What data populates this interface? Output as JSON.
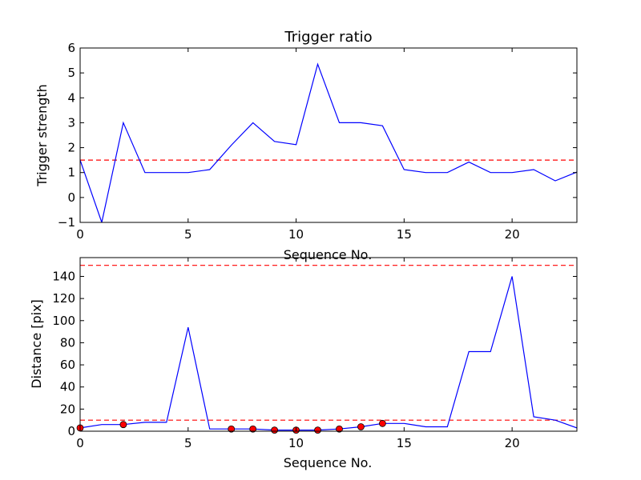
{
  "chart_data": [
    {
      "type": "line",
      "title": "Trigger ratio",
      "xlabel": "Sequence No.",
      "ylabel": "Trigger strength",
      "xlim": [
        0,
        23
      ],
      "ylim": [
        -1,
        6
      ],
      "xticks": [
        "0",
        "5",
        "10",
        "15",
        "20"
      ],
      "yticks": [
        "−1",
        "0",
        "1",
        "2",
        "3",
        "4",
        "5",
        "6"
      ],
      "grid": false,
      "series": [
        {
          "color": "#0000ff",
          "x": [
            0,
            1,
            2,
            3,
            4,
            5,
            6,
            7,
            8,
            9,
            10,
            11,
            12,
            13,
            14,
            15,
            16,
            17,
            18,
            19,
            20,
            21,
            22,
            23
          ],
          "y": [
            1.5,
            -1,
            3,
            1,
            1,
            1,
            1.12,
            2.1,
            3,
            2.25,
            2.12,
            5.35,
            3,
            3,
            2.88,
            1.12,
            1,
            1,
            1.42,
            1,
            1,
            1.12,
            0.67,
            1.02
          ]
        }
      ],
      "hlines": [
        {
          "y": 1.5,
          "color": "#ff0000",
          "style": "dashed"
        }
      ]
    },
    {
      "type": "line",
      "title": "",
      "xlabel": "Sequence No.",
      "ylabel": "Distance [pix]",
      "xlim": [
        0,
        23
      ],
      "ylim": [
        0,
        157
      ],
      "xticks": [
        "0",
        "5",
        "10",
        "15",
        "20"
      ],
      "yticks": [
        "0",
        "20",
        "40",
        "60",
        "80",
        "100",
        "120",
        "140"
      ],
      "grid": false,
      "series": [
        {
          "color": "#0000ff",
          "x": [
            0,
            1,
            2,
            3,
            4,
            5,
            6,
            7,
            8,
            9,
            10,
            11,
            12,
            13,
            14,
            15,
            16,
            17,
            18,
            19,
            20,
            21,
            22,
            23
          ],
          "y": [
            3,
            6,
            6,
            8,
            8,
            94,
            2,
            2,
            2,
            1,
            1,
            1,
            2,
            4,
            7,
            7,
            4,
            4,
            72,
            72,
            140,
            13,
            10,
            3
          ]
        }
      ],
      "markers": {
        "color": "#ff0000",
        "x": [
          0,
          2,
          7,
          8,
          9,
          10,
          11,
          12,
          13,
          14
        ],
        "y": [
          3,
          6,
          2,
          2,
          1,
          1,
          1,
          2,
          4,
          7
        ]
      },
      "hlines": [
        {
          "y": 150,
          "color": "#ff0000",
          "style": "dashed"
        },
        {
          "y": 10,
          "color": "#ff0000",
          "style": "dashed"
        }
      ]
    }
  ]
}
